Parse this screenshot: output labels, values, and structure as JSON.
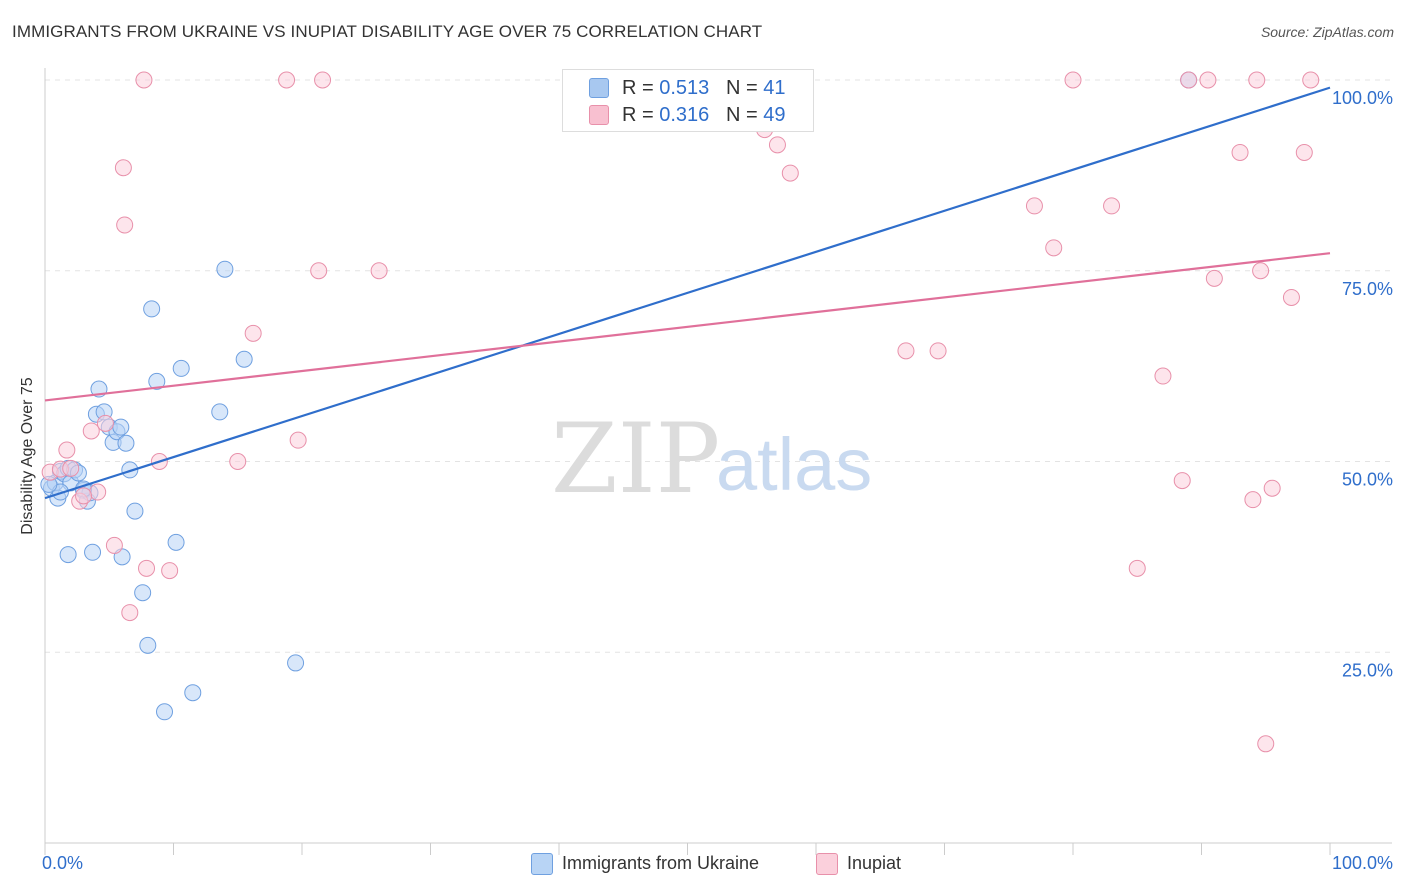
{
  "title": "IMMIGRANTS FROM UKRAINE VS INUPIAT DISABILITY AGE OVER 75 CORRELATION CHART",
  "source": "Source: ZipAtlas.com",
  "watermark": {
    "zip": "ZIP",
    "atlas": "atlas"
  },
  "stats": [
    {
      "r_label": "R =",
      "r_value": "0.513",
      "n_label": "N =",
      "n_value": "41",
      "color": "#a8c8f0",
      "border": "#6fa0e0"
    },
    {
      "r_label": "R =",
      "r_value": "0.316",
      "n_label": "N =",
      "n_value": "49",
      "color": "#f8c0d0",
      "border": "#e890aa"
    }
  ],
  "legend": [
    {
      "label": "Immigrants from Ukraine",
      "color": "#b8d4f5",
      "border": "#6fa0e0"
    },
    {
      "label": "Inupiat",
      "color": "#fbd0dc",
      "border": "#e890aa"
    }
  ],
  "chart_data": {
    "type": "scatter",
    "title": "IMMIGRANTS FROM UKRAINE VS INUPIAT DISABILITY AGE OVER 75 CORRELATION CHART",
    "xlabel": "",
    "ylabel": "Disability Age Over 75",
    "xlim": [
      0,
      100
    ],
    "ylim": [
      0,
      100
    ],
    "x_tick_labels": [
      "0.0%",
      "100.0%"
    ],
    "y_ticks": [
      {
        "value": 25,
        "label": "25.0%"
      },
      {
        "value": 50,
        "label": "50.0%"
      },
      {
        "value": 75,
        "label": "75.0%"
      },
      {
        "value": 100,
        "label": "100.0%"
      }
    ],
    "grid": true,
    "series": [
      {
        "name": "Immigrants from Ukraine",
        "color": "#6fa0e0",
        "fill": "#b8d4f5",
        "line_color": "#2f6ecb",
        "trend": [
          [
            0,
            45.2
          ],
          [
            100,
            99.0
          ]
        ],
        "points": [
          [
            0.5,
            46.5
          ],
          [
            0.8,
            47.2
          ],
          [
            1.0,
            45.2
          ],
          [
            1.2,
            48.7
          ],
          [
            1.5,
            48.4
          ],
          [
            1.8,
            49.1
          ],
          [
            2.0,
            47.2
          ],
          [
            2.3,
            48.9
          ],
          [
            2.6,
            48.5
          ],
          [
            3.0,
            46.2
          ],
          [
            3.3,
            44.8
          ],
          [
            3.5,
            45.9
          ],
          [
            4.0,
            56.2
          ],
          [
            4.2,
            59.5
          ],
          [
            4.6,
            56.5
          ],
          [
            5.0,
            54.5
          ],
          [
            5.3,
            52.5
          ],
          [
            5.6,
            53.9
          ],
          [
            5.9,
            54.5
          ],
          [
            6.3,
            52.4
          ],
          [
            6.6,
            48.9
          ],
          [
            7.0,
            43.5
          ],
          [
            7.6,
            32.8
          ],
          [
            8.0,
            25.9
          ],
          [
            8.3,
            70.0
          ],
          [
            8.7,
            60.5
          ],
          [
            9.3,
            17.2
          ],
          [
            10.2,
            39.4
          ],
          [
            10.6,
            62.2
          ],
          [
            11.5,
            19.7
          ],
          [
            13.6,
            56.5
          ],
          [
            14.0,
            75.2
          ],
          [
            15.5,
            63.4
          ],
          [
            19.5,
            23.6
          ],
          [
            1.8,
            37.8
          ],
          [
            3.7,
            38.1
          ],
          [
            1.2,
            46.0
          ],
          [
            0.3,
            47.0
          ],
          [
            6.0,
            37.5
          ],
          [
            89.0,
            100.0
          ],
          [
            3.0,
            46.4
          ]
        ]
      },
      {
        "name": "Inupiat",
        "color": "#e890aa",
        "fill": "#fbd0dc",
        "line_color": "#e0709a",
        "trend": [
          [
            0,
            58.0
          ],
          [
            100,
            77.3
          ]
        ],
        "points": [
          [
            0.4,
            48.6
          ],
          [
            1.2,
            49.0
          ],
          [
            1.7,
            51.5
          ],
          [
            2.0,
            49.1
          ],
          [
            2.7,
            44.8
          ],
          [
            3.6,
            54.0
          ],
          [
            4.1,
            46.0
          ],
          [
            4.7,
            55.0
          ],
          [
            5.4,
            39.0
          ],
          [
            6.1,
            88.5
          ],
          [
            6.2,
            81.0
          ],
          [
            6.6,
            30.2
          ],
          [
            7.7,
            100.0
          ],
          [
            7.9,
            36.0
          ],
          [
            8.9,
            50.0
          ],
          [
            9.7,
            35.7
          ],
          [
            15.0,
            50.0
          ],
          [
            16.2,
            66.8
          ],
          [
            18.8,
            100.0
          ],
          [
            19.7,
            52.8
          ],
          [
            21.6,
            100.0
          ],
          [
            21.3,
            75.0
          ],
          [
            26.0,
            75.0
          ],
          [
            54.0,
            94.5
          ],
          [
            56.0,
            93.5
          ],
          [
            57.0,
            91.5
          ],
          [
            58.0,
            87.8
          ],
          [
            67.0,
            64.5
          ],
          [
            69.5,
            64.5
          ],
          [
            77.0,
            83.5
          ],
          [
            78.5,
            78.0
          ],
          [
            80.0,
            100.0
          ],
          [
            83.0,
            83.5
          ],
          [
            85.0,
            36.0
          ],
          [
            87.0,
            61.2
          ],
          [
            88.5,
            47.5
          ],
          [
            89.0,
            100.0
          ],
          [
            90.5,
            100.0
          ],
          [
            91.0,
            74.0
          ],
          [
            93.0,
            90.5
          ],
          [
            94.0,
            45.0
          ],
          [
            94.3,
            100.0
          ],
          [
            94.6,
            75.0
          ],
          [
            95.5,
            46.5
          ],
          [
            97.0,
            71.5
          ],
          [
            98.0,
            90.5
          ],
          [
            98.5,
            100.0
          ],
          [
            95.0,
            13.0
          ],
          [
            3.0,
            45.5
          ]
        ]
      }
    ]
  }
}
